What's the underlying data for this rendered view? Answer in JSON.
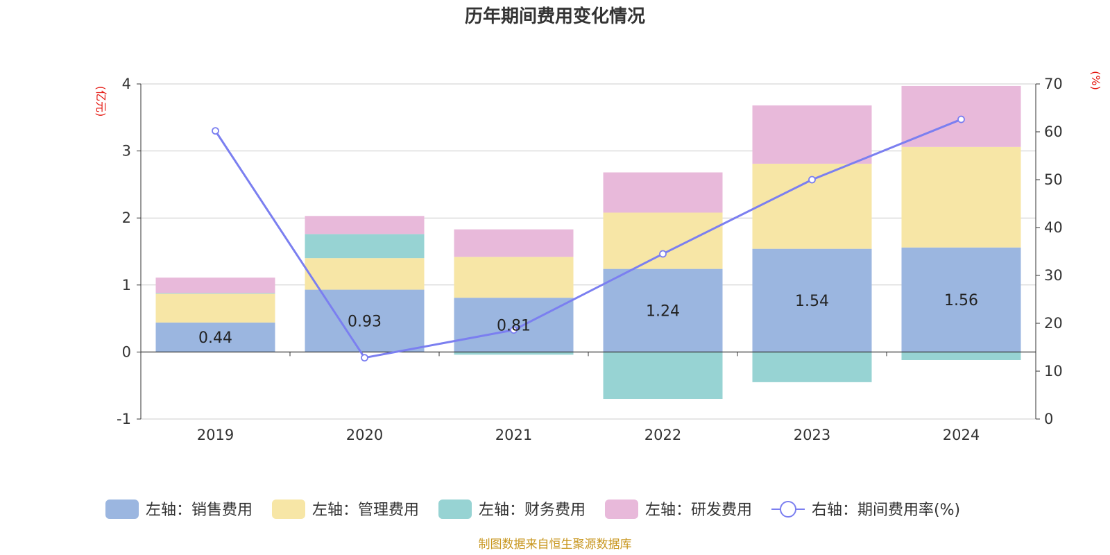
{
  "chart_data": {
    "type": "bar",
    "title": "历年期间费用变化情况",
    "categories": [
      "2019",
      "2020",
      "2021",
      "2022",
      "2023",
      "2024"
    ],
    "left_axis": {
      "unit_label": "(亿元)",
      "ylim": [
        -1,
        4
      ],
      "ticks": [
        -1,
        0,
        1,
        2,
        3,
        4
      ]
    },
    "right_axis": {
      "unit_label": "(%)",
      "ylim": [
        0,
        70
      ],
      "ticks": [
        0,
        10,
        20,
        30,
        40,
        50,
        60,
        70
      ]
    },
    "series": [
      {
        "name": "左轴：销售费用",
        "type": "bar",
        "axis": "left",
        "color": "#9bb6e0",
        "values": [
          0.44,
          0.93,
          0.81,
          1.24,
          1.54,
          1.56
        ],
        "labels": [
          "0.44",
          "0.93",
          "0.81",
          "1.24",
          "1.54",
          "1.56"
        ]
      },
      {
        "name": "左轴：管理费用",
        "type": "bar",
        "axis": "left",
        "color": "#f7e6a6",
        "values": [
          0.43,
          0.47,
          0.61,
          0.84,
          1.27,
          1.5
        ]
      },
      {
        "name": "左轴：财务费用",
        "type": "bar",
        "axis": "left",
        "color": "#97d3d3",
        "values": [
          0.01,
          0.36,
          -0.04,
          -0.7,
          -0.45,
          -0.12
        ]
      },
      {
        "name": "左轴：研发费用",
        "type": "bar",
        "axis": "left",
        "color": "#e8b9da",
        "values": [
          0.23,
          0.27,
          0.41,
          0.6,
          0.87,
          0.91
        ]
      },
      {
        "name": "右轴：期间费用率(%)",
        "type": "line",
        "axis": "right",
        "color": "#7b7ff0",
        "values": [
          60.2,
          12.8,
          18.6,
          34.5,
          50.0,
          62.6
        ]
      }
    ],
    "grid": true,
    "legend_position": "bottom"
  },
  "footer": {
    "source": "制图数据来自恒生聚源数据库"
  }
}
